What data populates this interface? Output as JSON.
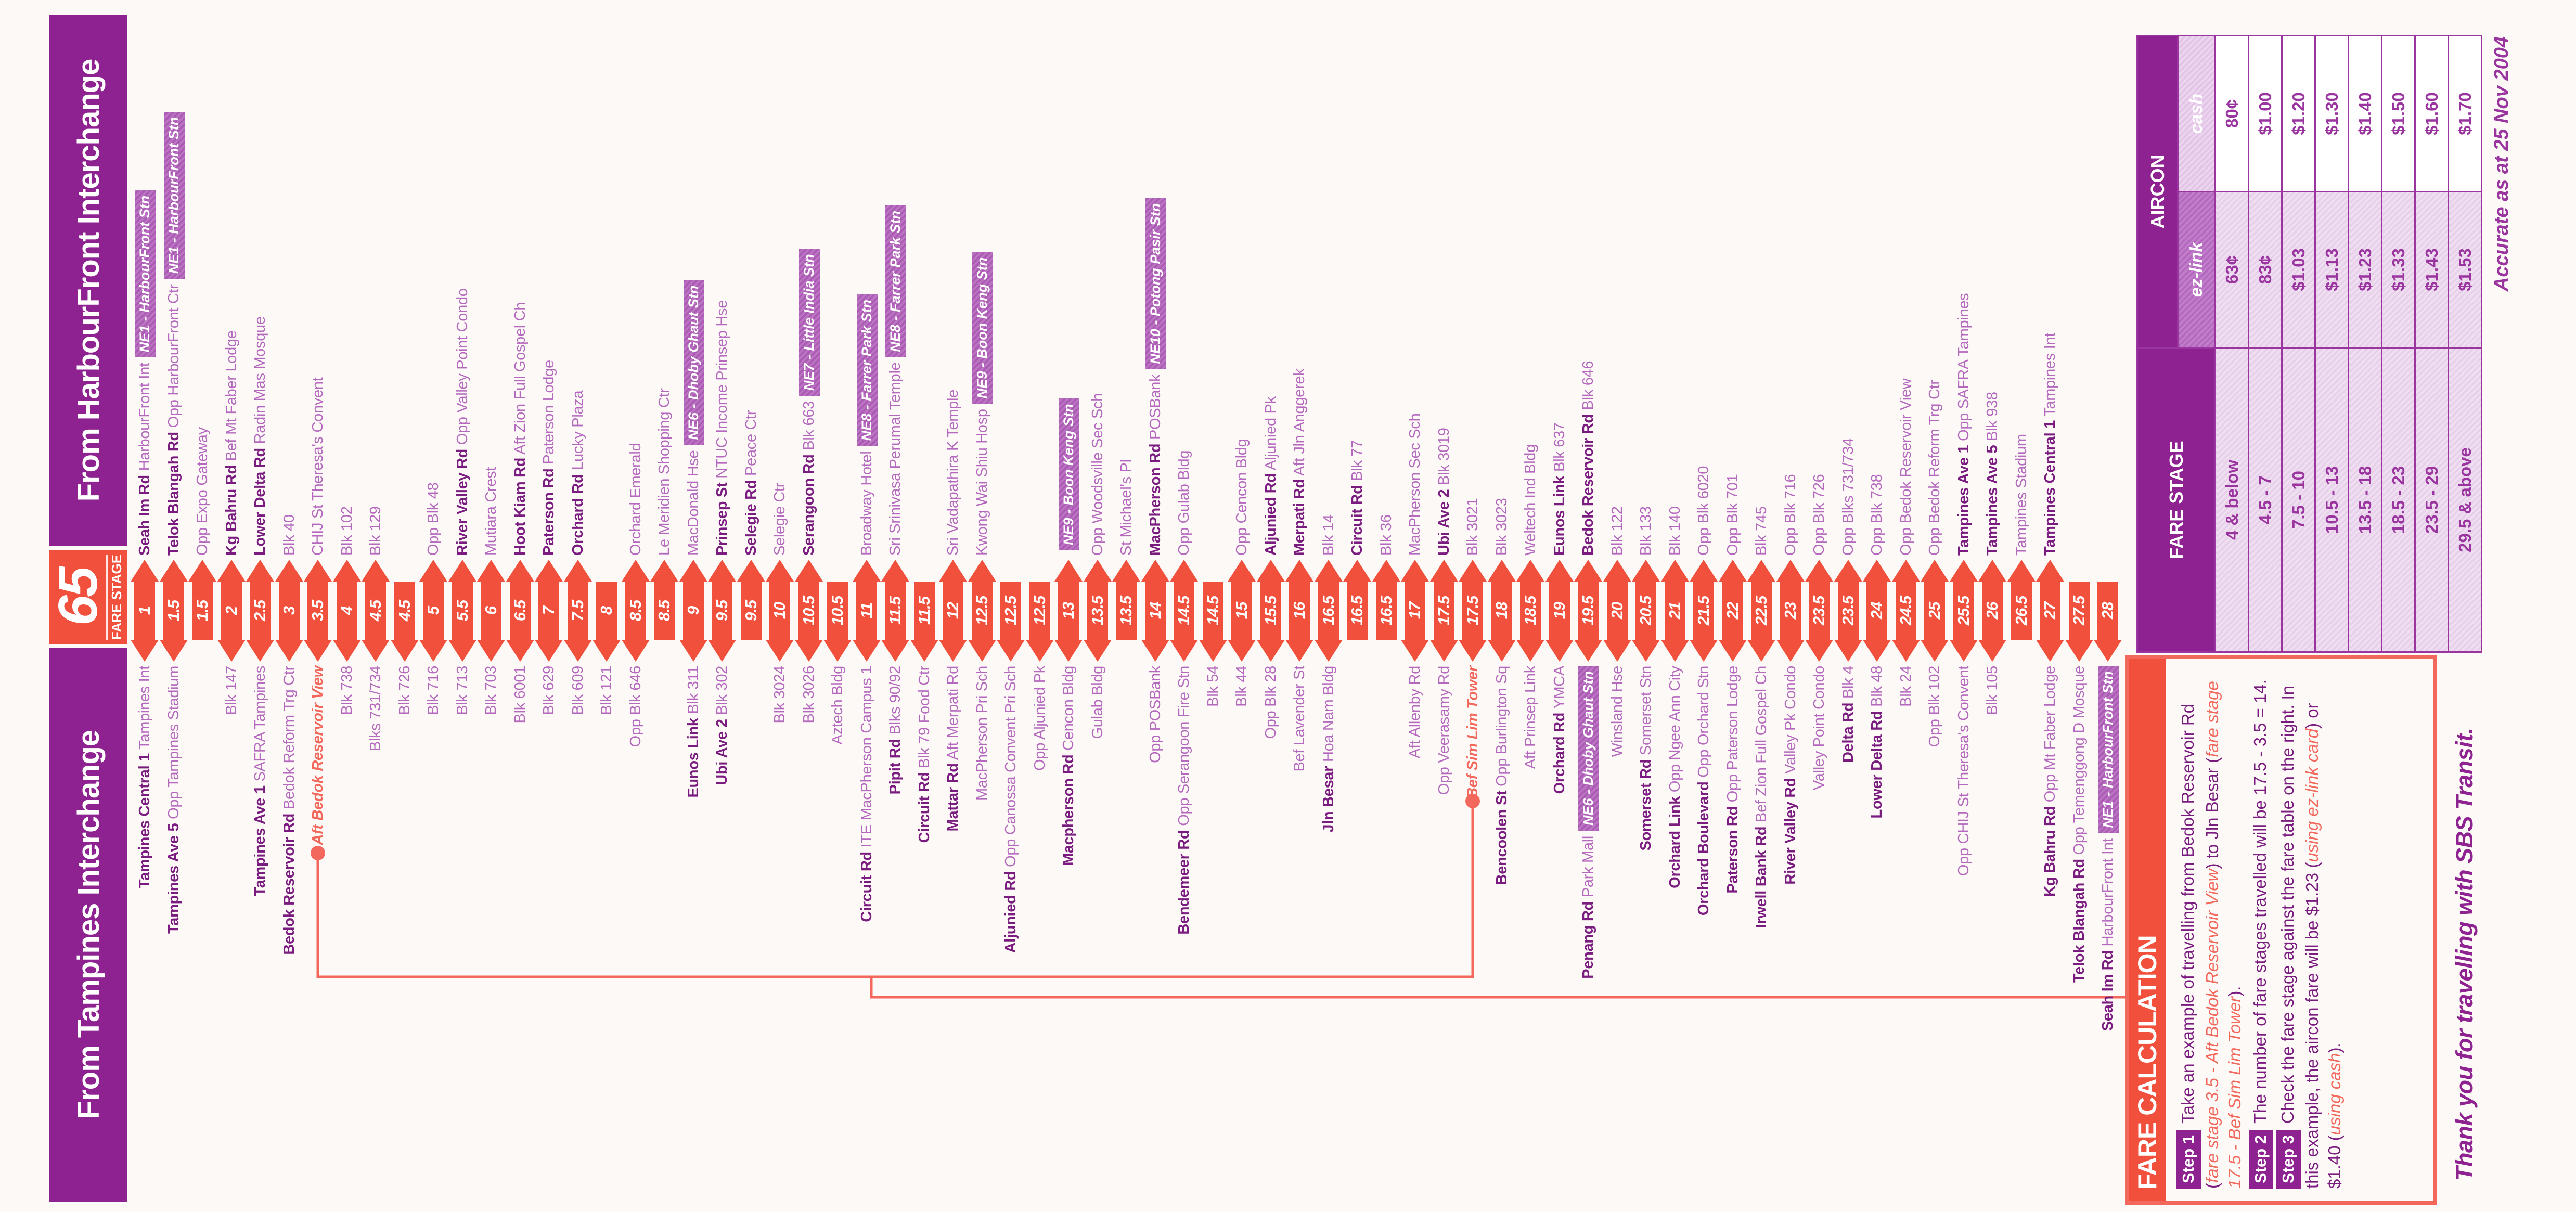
{
  "header": {
    "from_tampines": "From Tampines Interchange",
    "service_number": "65",
    "fare_stage_label": "FARE STAGE",
    "from_harbourfront": "From HarbourFront Interchange"
  },
  "stops": [
    {
      "s": "1",
      "hf": {
        "b": "Seah Im Rd",
        "r": "HarbourFront Int",
        "badge": "NE1 - HarbourFront Stn"
      },
      "tam": {
        "b": "Tampines Central 1",
        "r": "Tampines Int"
      }
    },
    {
      "s": "1.5",
      "hf": {
        "b": "Telok Blangah Rd",
        "r": "Opp HarbourFront Ctr",
        "badge": "NE1 - HarbourFront Stn"
      },
      "tam": {
        "b": "Tampines Ave 5",
        "r": "Opp Tampines Stadium"
      }
    },
    {
      "s": "1.5",
      "hf": {
        "r": "Opp Expo Gateway"
      }
    },
    {
      "s": "2",
      "hf": {
        "b": "Kg Bahru Rd",
        "r": "Bef Mt Faber Lodge"
      },
      "tam": {
        "r": "Blk 147"
      }
    },
    {
      "s": "2.5",
      "hf": {
        "b": "Lower Delta Rd",
        "r": "Radin Mas Mosque"
      },
      "tam": {
        "b": "Tampines Ave 1",
        "r": "SAFRA Tampines"
      }
    },
    {
      "s": "3",
      "hf": {
        "r": "Blk 40"
      },
      "tam": {
        "b": "Bedok Reservoir Rd",
        "r": "Bedok Reform Trg Ctr"
      }
    },
    {
      "s": "3.5",
      "hf": {
        "r": "CHIJ St Theresa's Convent"
      },
      "tam": {
        "r": "Aft Bedok Reservoir View",
        "red": true
      }
    },
    {
      "s": "4",
      "hf": {
        "r": "Blk 102"
      },
      "tam": {
        "r": "Blk 738"
      }
    },
    {
      "s": "4.5",
      "hf": {
        "r": "Blk 129"
      },
      "tam": {
        "r": "Blks 731/734"
      }
    },
    {
      "s": "4.5",
      "tam": {
        "r": "Blk 726"
      }
    },
    {
      "s": "5",
      "hf": {
        "r": "Opp Blk 48"
      },
      "tam": {
        "r": "Blk 716"
      }
    },
    {
      "s": "5.5",
      "hf": {
        "b": "River Valley Rd",
        "r": "Opp Valley Point Condo"
      },
      "tam": {
        "r": "Blk 713"
      }
    },
    {
      "s": "6",
      "hf": {
        "r": "Mutiara Crest"
      },
      "tam": {
        "r": "Blk 703"
      }
    },
    {
      "s": "6.5",
      "hf": {
        "b": "Hoot Kiam Rd",
        "r": "Aft Zion Full Gospel Ch"
      },
      "tam": {
        "r": "Blk 6001"
      }
    },
    {
      "s": "7",
      "hf": {
        "b": "Paterson Rd",
        "r": "Paterson Lodge"
      },
      "tam": {
        "r": "Blk 629"
      }
    },
    {
      "s": "7.5",
      "hf": {
        "b": "Orchard Rd",
        "r": "Lucky Plaza"
      },
      "tam": {
        "r": "Blk 609"
      }
    },
    {
      "s": "8",
      "tam": {
        "r": "Blk 121"
      }
    },
    {
      "s": "8.5",
      "hf": {
        "r": "Orchard Emerald"
      },
      "tam": {
        "r": "Opp Blk 646"
      }
    },
    {
      "s": "8.5",
      "hf": {
        "r": "Le Meridien Shopping Ctr"
      }
    },
    {
      "s": "9",
      "hf": {
        "r": "MacDonald Hse",
        "badge": "NE6 - Dhoby Ghaut Stn"
      },
      "tam": {
        "b": "Eunos Link",
        "r": "Blk 311"
      }
    },
    {
      "s": "9.5",
      "hf": {
        "b": "Prinsep St",
        "r": "NTUC Income Prinsep Hse"
      },
      "tam": {
        "b": "Ubi Ave 2",
        "r": "Blk 302"
      }
    },
    {
      "s": "9.5",
      "hf": {
        "b": "Selegie Rd",
        "r": "Peace Ctr"
      }
    },
    {
      "s": "10",
      "hf": {
        "r": "Selegie Ctr"
      },
      "tam": {
        "r": "Blk 3024"
      }
    },
    {
      "s": "10.5",
      "hf": {
        "b": "Serangoon Rd",
        "r": "Blk 663",
        "badge": "NE7 - Little India Stn"
      },
      "tam": {
        "r": "Blk 3026"
      }
    },
    {
      "s": "10.5",
      "tam": {
        "r": "Aztech Bldg"
      }
    },
    {
      "s": "11",
      "hf": {
        "r": "Broadway Hotel",
        "badge": "NE8 - Farrer Park Stn"
      },
      "tam": {
        "b": "Circuit Rd",
        "r": "ITE MacPherson Campus 1"
      }
    },
    {
      "s": "11.5",
      "hf": {
        "r": "Sri Srinivasa Perumal Temple",
        "badge": "NE8 - Farrer Park Stn"
      },
      "tam": {
        "b": "Pipit Rd",
        "r": "Blks 90/92"
      }
    },
    {
      "s": "11.5",
      "tam": {
        "b": "Circuit Rd",
        "r": "Blk 79 Food Ctr"
      }
    },
    {
      "s": "12",
      "hf": {
        "r": "Sri Vadapathira K Temple"
      },
      "tam": {
        "b": "Mattar Rd",
        "r": "Aft Merpati Rd"
      }
    },
    {
      "s": "12.5",
      "hf": {
        "r": "Kwong Wai Shiu Hosp",
        "badge": "NE9 - Boon Keng Stn"
      },
      "tam": {
        "r": "MacPherson Pri Sch"
      }
    },
    {
      "s": "12.5",
      "tam": {
        "b": "Aljunied Rd",
        "r": "Opp Canossa Convent Pri Sch"
      }
    },
    {
      "s": "12.5",
      "tam": {
        "r": "Opp Aljunied Pk"
      }
    },
    {
      "s": "13",
      "hf": {
        "badge": "NE9 - Boon Keng Stn"
      },
      "tam": {
        "b": "Macpherson Rd",
        "r": "Cencon Bldg"
      }
    },
    {
      "s": "13.5",
      "hf": {
        "r": "Opp Woodsville Sec Sch"
      },
      "tam": {
        "r": "Gulab Bldg"
      }
    },
    {
      "s": "13.5",
      "hf": {
        "r": "St Michael's Pl"
      }
    },
    {
      "s": "14",
      "hf": {
        "b": "MacPherson Rd",
        "r": "POSBank",
        "badge": "NE10 - Potong Pasir Stn"
      },
      "tam": {
        "r": "Opp POSBank"
      }
    },
    {
      "s": "14.5",
      "hf": {
        "r": "Opp Gulab Bldg"
      },
      "tam": {
        "b": "Bendemeer Rd",
        "r": "Opp Serangoon Fire Stn"
      }
    },
    {
      "s": "14.5",
      "tam": {
        "r": "Blk 54"
      }
    },
    {
      "s": "15",
      "hf": {
        "r": "Opp Cencon Bldg"
      },
      "tam": {
        "r": "Blk 44"
      }
    },
    {
      "s": "15.5",
      "hf": {
        "b": "Aljunied Rd",
        "r": "Aljunied Pk"
      },
      "tam": {
        "r": "Opp Blk 28"
      }
    },
    {
      "s": "16",
      "hf": {
        "b": "Merpati Rd",
        "r": "Aft Jln Anggerek"
      },
      "tam": {
        "r": "Bef Lavender St"
      }
    },
    {
      "s": "16.5",
      "hf": {
        "r": "Blk 14"
      },
      "tam": {
        "b": "Jln Besar",
        "r": "Hoa Nam Bldg"
      }
    },
    {
      "s": "16.5",
      "hf": {
        "b": "Circuit Rd",
        "r": "Blk 77"
      }
    },
    {
      "s": "16.5",
      "hf": {
        "r": "Blk 36"
      }
    },
    {
      "s": "17",
      "hf": {
        "r": "MacPherson Sec Sch"
      },
      "tam": {
        "r": "Aft Allenby Rd"
      }
    },
    {
      "s": "17.5",
      "hf": {
        "b": "Ubi Ave 2",
        "r": "Blk 3019"
      },
      "tam": {
        "r": "Opp Veerasamy Rd"
      }
    },
    {
      "s": "17.5",
      "hf": {
        "r": "Blk 3021"
      },
      "tam": {
        "r": "Bef Sim Lim Tower",
        "red": true
      }
    },
    {
      "s": "18",
      "hf": {
        "r": "Blk 3023"
      },
      "tam": {
        "b": "Bencoolen St",
        "r": "Opp Burlington Sq"
      }
    },
    {
      "s": "18.5",
      "hf": {
        "r": "Weltech Ind Bldg"
      },
      "tam": {
        "r": "Aft Prinsep Link"
      }
    },
    {
      "s": "19",
      "hf": {
        "b": "Eunos Link",
        "r": "Blk 637"
      },
      "tam": {
        "b": "Orchard Rd",
        "r": "YMCA"
      }
    },
    {
      "s": "19.5",
      "hf": {
        "b": "Bedok Reservoir Rd",
        "r": "Blk 646"
      },
      "tam": {
        "b": "Penang Rd",
        "r": "Park Mall",
        "badge": "NE6 - Dhoby Ghaut Stn"
      }
    },
    {
      "s": "20",
      "hf": {
        "r": "Blk 122"
      },
      "tam": {
        "r": "Winsland Hse"
      }
    },
    {
      "s": "20.5",
      "hf": {
        "r": "Blk 133"
      },
      "tam": {
        "b": "Somerset Rd",
        "r": "Somerset Stn"
      }
    },
    {
      "s": "21",
      "hf": {
        "r": "Blk 140"
      },
      "tam": {
        "b": "Orchard Link",
        "r": "Opp Ngee Ann City"
      }
    },
    {
      "s": "21.5",
      "hf": {
        "r": "Opp Blk 6020"
      },
      "tam": {
        "b": "Orchard Boulevard",
        "r": "Opp Orchard Stn"
      }
    },
    {
      "s": "22",
      "hf": {
        "r": "Opp Blk 701"
      },
      "tam": {
        "b": "Paterson Rd",
        "r": "Opp Paterson Lodge"
      }
    },
    {
      "s": "22.5",
      "hf": {
        "r": "Blk 745"
      },
      "tam": {
        "b": "Irwell Bank Rd",
        "r": "Bef Zion Full Gospel Ch"
      }
    },
    {
      "s": "23",
      "hf": {
        "r": "Opp Blk 716"
      },
      "tam": {
        "b": "River Valley Rd",
        "r": "Valley Pk Condo"
      }
    },
    {
      "s": "23.5",
      "hf": {
        "r": "Opp Blk 726"
      },
      "tam": {
        "r": "Valley Point Condo"
      }
    },
    {
      "s": "23.5",
      "hf": {
        "r": "Opp Blks 731/734"
      },
      "tam": {
        "b": "Delta Rd",
        "r": "Blk 4"
      }
    },
    {
      "s": "24",
      "hf": {
        "r": "Opp Blk 738"
      },
      "tam": {
        "b": "Lower Delta Rd",
        "r": "Blk 48"
      }
    },
    {
      "s": "24.5",
      "hf": {
        "r": "Opp Bedok Reservoir View"
      },
      "tam": {
        "r": "Blk 24"
      }
    },
    {
      "s": "25",
      "hf": {
        "r": "Opp Bedok Reform Trg Ctr"
      },
      "tam": {
        "r": "Opp Blk 102"
      }
    },
    {
      "s": "25.5",
      "hf": {
        "b": "Tampines Ave 1",
        "r": "Opp SAFRA Tampines"
      },
      "tam": {
        "r": "Opp CHIJ St Theresa's Convent"
      }
    },
    {
      "s": "26",
      "hf": {
        "b": "Tampines Ave 5",
        "r": "Blk 938"
      },
      "tam": {
        "r": "Blk 105"
      }
    },
    {
      "s": "26.5",
      "hf": {
        "r": "Tampines Stadium"
      }
    },
    {
      "s": "27",
      "hf": {
        "b": "Tampines Central 1",
        "r": "Tampines Int"
      },
      "tam": {
        "b": "Kg Bahru Rd",
        "r": "Opp Mt Faber Lodge"
      }
    },
    {
      "s": "27.5",
      "tam": {
        "b": "Telok Blangah Rd",
        "r": "Opp Temenggong D Mosque"
      }
    },
    {
      "s": "28",
      "tam": {
        "b": "Seah Im Rd",
        "r": "HarbourFront Int",
        "badge": "NE1 - HarbourFront Stn"
      }
    }
  ],
  "fare_table": {
    "header": {
      "fare_stage": "FARE STAGE",
      "aircon": "AIRCON",
      "ezlink": "ez-link",
      "cash": "cash"
    },
    "rows": [
      {
        "stage": "4 & below",
        "ezlink": "63¢",
        "cash": "80¢"
      },
      {
        "stage": "4.5 - 7",
        "ezlink": "83¢",
        "cash": "$1.00"
      },
      {
        "stage": "7.5 - 10",
        "ezlink": "$1.03",
        "cash": "$1.20"
      },
      {
        "stage": "10.5 - 13",
        "ezlink": "$1.13",
        "cash": "$1.30"
      },
      {
        "stage": "13.5 - 18",
        "ezlink": "$1.23",
        "cash": "$1.40"
      },
      {
        "stage": "18.5 - 23",
        "ezlink": "$1.33",
        "cash": "$1.50"
      },
      {
        "stage": "23.5 - 29",
        "ezlink": "$1.43",
        "cash": "$1.60"
      },
      {
        "stage": "29.5 & above",
        "ezlink": "$1.53",
        "cash": "$1.70"
      }
    ]
  },
  "accurate_note": "Accurate as at 25 Nov 2004",
  "fare_calc": {
    "title": "FARE CALCULATION",
    "steps": [
      {
        "label": "Step 1",
        "parts": [
          {
            "t": "Take an example of travelling from Bedok Reservoir Rd ("
          },
          {
            "t": "fare stage 3.5 - Aft Bedok Reservoir View",
            "red": true
          },
          {
            "t": ") to Jln Besar ("
          },
          {
            "t": "fare stage 17.5 - Bef Sim Lim Tower",
            "red": true
          },
          {
            "t": ")."
          }
        ]
      },
      {
        "label": "Step 2",
        "parts": [
          {
            "t": "The number of fare stages travelled will be 17.5 - 3.5 = 14."
          }
        ]
      },
      {
        "label": "Step 3",
        "parts": [
          {
            "t": "Check the fare stage against the fare table on the right. In this example, the aircon fare will be $1.23 ("
          },
          {
            "t": "using ez-link card",
            "red": true
          },
          {
            "t": ") or $1.40 ("
          },
          {
            "t": "using cash",
            "red": true
          },
          {
            "t": ")."
          }
        ]
      }
    ]
  },
  "thanks": "Thank you for travelling with SBS Transit.",
  "colors": {
    "purple_header": "#8E2290",
    "purple_dark": "#7A1B7F",
    "purple_mid": "#9A35A0",
    "name_light": "#B468BE",
    "red_arrow": "#F0503C",
    "salmon_highlight": "#F2685C"
  },
  "layout": {
    "first_marker_v": 250,
    "marker_pitch": 55.5
  }
}
